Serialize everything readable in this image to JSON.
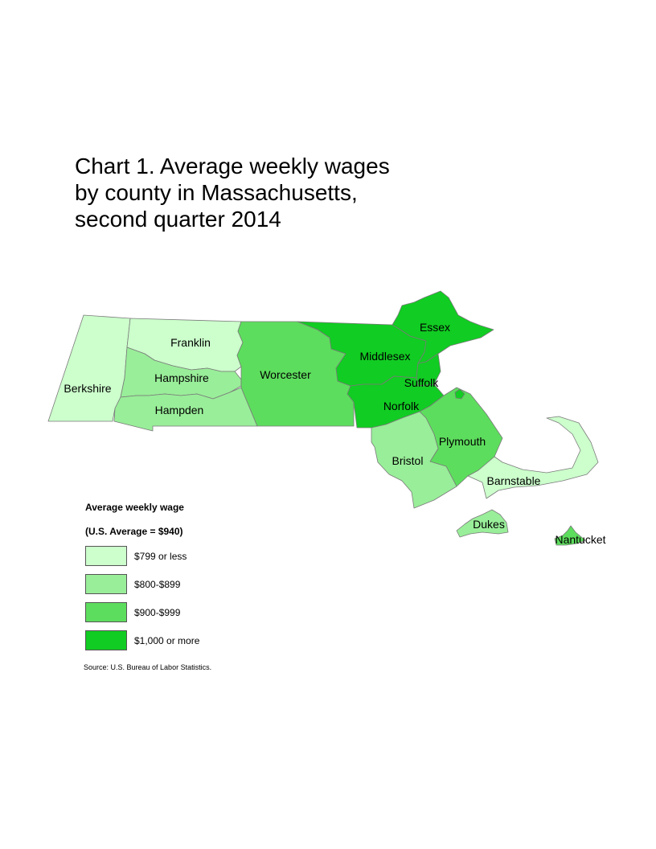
{
  "title_lines": [
    "Chart 1. Average weekly wages",
    "by county in Massachusetts,",
    "second quarter 2014"
  ],
  "legend": {
    "title": "Average weekly wage",
    "subtitle": "(U.S. Average = $940)",
    "items": [
      {
        "label": "$799 or less",
        "color": "#ccffcc"
      },
      {
        "label": "$800-$899",
        "color": "#99ee99"
      },
      {
        "label": "$900-$999",
        "color": "#5ddd5d"
      },
      {
        "label": "$1,000 or more",
        "color": "#11cc22"
      }
    ]
  },
  "source": "Source: U.S. Bureau of Labor Statistics.",
  "chart_data": {
    "type": "choropleth",
    "region": "Massachusetts counties",
    "counties": [
      {
        "name": "Berkshire",
        "wage_class": "$799 or less"
      },
      {
        "name": "Franklin",
        "wage_class": "$799 or less"
      },
      {
        "name": "Hampshire",
        "wage_class": "$800-$899"
      },
      {
        "name": "Hampden",
        "wage_class": "$800-$899"
      },
      {
        "name": "Worcester",
        "wage_class": "$900-$999"
      },
      {
        "name": "Middlesex",
        "wage_class": "$1,000 or more"
      },
      {
        "name": "Essex",
        "wage_class": "$1,000 or more"
      },
      {
        "name": "Suffolk",
        "wage_class": "$1,000 or more"
      },
      {
        "name": "Norfolk",
        "wage_class": "$1,000 or more"
      },
      {
        "name": "Plymouth",
        "wage_class": "$900-$999"
      },
      {
        "name": "Bristol",
        "wage_class": "$800-$899"
      },
      {
        "name": "Barnstable",
        "wage_class": "$799 or less"
      },
      {
        "name": "Dukes",
        "wage_class": "$800-$899"
      },
      {
        "name": "Nantucket",
        "wage_class": "$900-$999"
      }
    ]
  }
}
